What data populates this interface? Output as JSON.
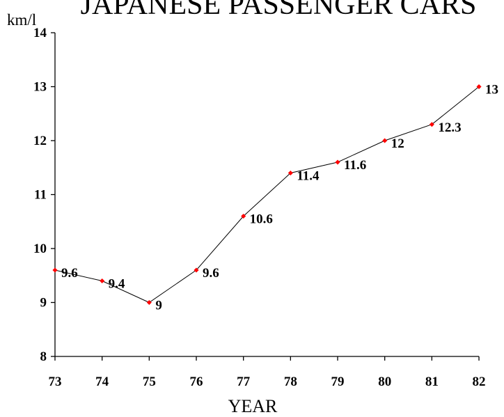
{
  "chart_data": {
    "type": "line",
    "title": "JAPANESE PASSENGER CARS",
    "ylabel": "km/l",
    "xlabel": "YEAR",
    "categories": [
      "73",
      "74",
      "75",
      "76",
      "77",
      "78",
      "79",
      "80",
      "81",
      "82"
    ],
    "series": [
      {
        "values": [
          9.6,
          9.4,
          9,
          9.6,
          10.6,
          11.4,
          11.6,
          12,
          12.3,
          13
        ],
        "labels": [
          "9.6",
          "9.4",
          "9",
          "9.6",
          "10.6",
          "11.4",
          "11.6",
          "12",
          "12.3",
          "13"
        ],
        "color": "#ff0000",
        "line_color": "#000000"
      }
    ],
    "ylim": [
      8,
      14
    ],
    "yticks": [
      "8",
      "9",
      "10",
      "11",
      "12",
      "13",
      "14"
    ],
    "grid": false,
    "legend": "none"
  }
}
